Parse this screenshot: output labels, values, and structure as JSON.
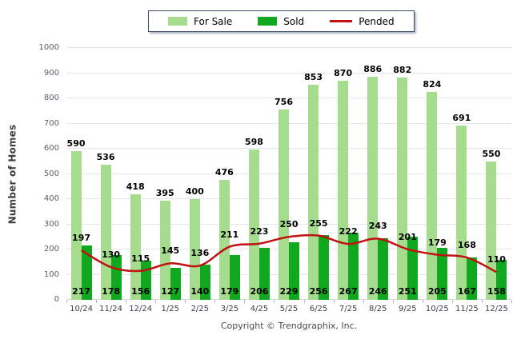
{
  "legend": {
    "items": [
      {
        "label": "For Sale",
        "type": "bar",
        "color": "#a5dc8e"
      },
      {
        "label": "Sold",
        "type": "bar",
        "color": "#0fa81e"
      },
      {
        "label": "Pended",
        "type": "line",
        "color": "#c01210"
      }
    ]
  },
  "ylabel": "Number of Homes",
  "footer": {
    "copyright": "Copyright © Trendgraphix, Inc."
  },
  "chart_data": {
    "type": "bar",
    "title": "",
    "xlabel": "",
    "ylabel": "Number of Homes",
    "categories": [
      "10/24",
      "11/24",
      "12/24",
      "1/25",
      "2/25",
      "3/25",
      "4/25",
      "5/25",
      "6/25",
      "7/25",
      "8/25",
      "9/25",
      "10/25",
      "11/25",
      "12/25"
    ],
    "series": [
      {
        "name": "For Sale",
        "type": "bar",
        "color": "#a5dc8e",
        "values": [
          590,
          536,
          418,
          395,
          400,
          476,
          598,
          756,
          853,
          870,
          886,
          882,
          824,
          691,
          550
        ]
      },
      {
        "name": "Sold",
        "type": "bar",
        "color": "#0fa81e",
        "values": [
          217,
          178,
          156,
          127,
          140,
          179,
          206,
          229,
          256,
          267,
          246,
          251,
          205,
          167,
          158
        ]
      },
      {
        "name": "Pended",
        "type": "line",
        "color": "#c01210",
        "values": [
          197,
          130,
          115,
          145,
          136,
          211,
          223,
          250,
          255,
          222,
          243,
          201,
          179,
          168,
          110
        ]
      }
    ],
    "ylim": [
      0,
      1000
    ],
    "yticks": [
      0,
      100,
      200,
      300,
      400,
      500,
      600,
      700,
      800,
      900,
      1000
    ],
    "grid": true,
    "legend_position": "top",
    "data_labels": true
  }
}
